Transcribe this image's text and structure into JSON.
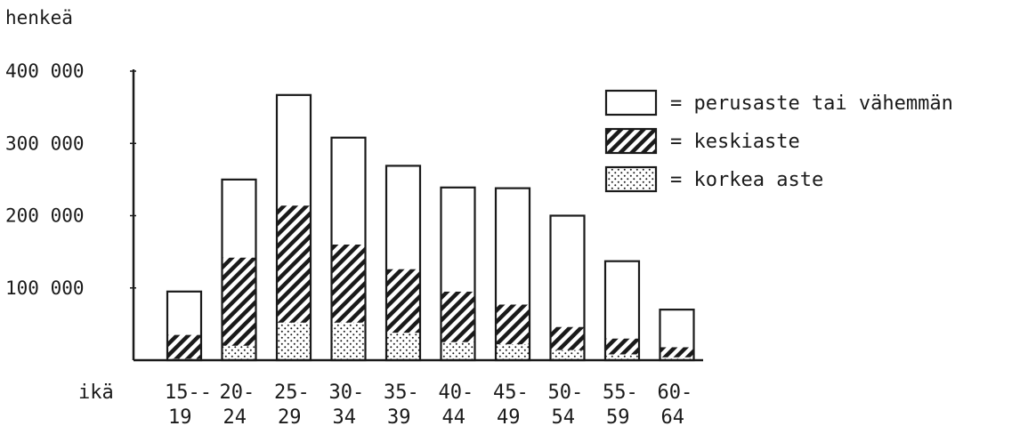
{
  "chart_data": {
    "type": "bar",
    "stacked": true,
    "title": "",
    "ylabel": "henkeä",
    "xlabel": "ikä",
    "ylim": [
      0,
      400000
    ],
    "yticks": [
      {
        "value": 100000,
        "label": "100 000"
      },
      {
        "value": 200000,
        "label": "200 000"
      },
      {
        "value": 300000,
        "label": "300 000"
      },
      {
        "value": 400000,
        "label": "400 000"
      }
    ],
    "categories": [
      "15–19",
      "20–24",
      "25–29",
      "30–34",
      "35–39",
      "40–44",
      "45–49",
      "50–54",
      "55–59",
      "60–64"
    ],
    "category_labels": [
      {
        "top": "15--",
        "bottom": "19"
      },
      {
        "top": "20-",
        "bottom": "24"
      },
      {
        "top": "25-",
        "bottom": "29"
      },
      {
        "top": "30-",
        "bottom": "34"
      },
      {
        "top": "35-",
        "bottom": "39"
      },
      {
        "top": "40-",
        "bottom": "44"
      },
      {
        "top": "45-",
        "bottom": "49"
      },
      {
        "top": "50-",
        "bottom": "54"
      },
      {
        "top": "55-",
        "bottom": "59"
      },
      {
        "top": "60-",
        "bottom": "64"
      }
    ],
    "series": [
      {
        "name": "korkea aste",
        "pattern": "dots",
        "values": [
          2000,
          20000,
          52000,
          52000,
          38000,
          25000,
          22000,
          14000,
          8000,
          4000
        ]
      },
      {
        "name": "keskiaste",
        "pattern": "hatch",
        "values": [
          33000,
          122000,
          162000,
          108000,
          88000,
          70000,
          55000,
          32000,
          22000,
          14000
        ]
      },
      {
        "name": "perusaste tai vähemmän",
        "pattern": "empty",
        "values": [
          60000,
          108000,
          153000,
          148000,
          143000,
          144000,
          161000,
          154000,
          107000,
          52000
        ]
      }
    ],
    "legend": {
      "position": "top-right",
      "entries": [
        {
          "pattern": "empty",
          "label": "= perusaste tai vähemmän"
        },
        {
          "pattern": "hatch",
          "label": "= keskiaste"
        },
        {
          "pattern": "dots",
          "label": "= korkea aste"
        }
      ]
    },
    "grid": false
  }
}
